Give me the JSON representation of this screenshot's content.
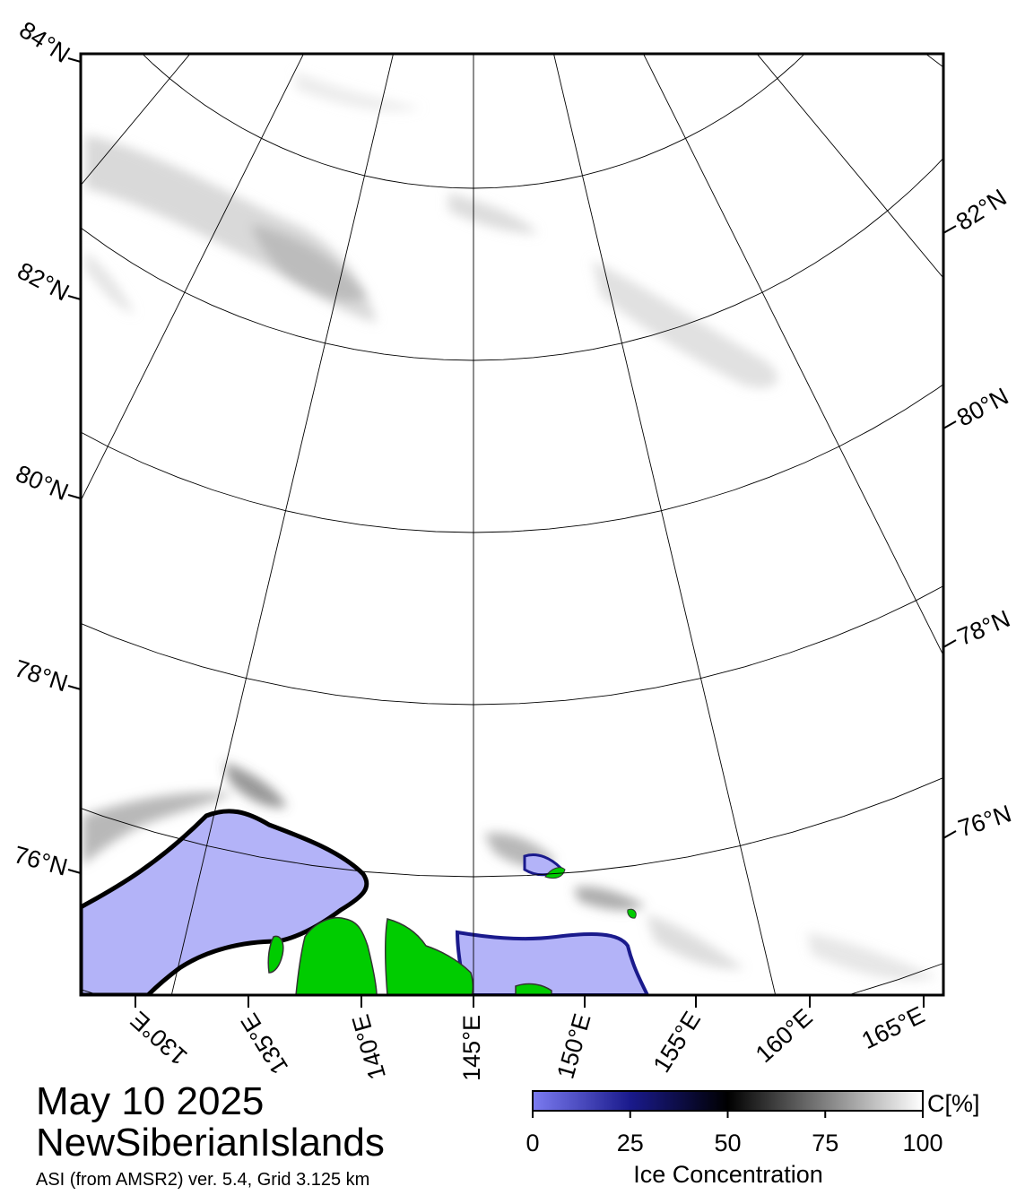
{
  "title": {
    "date": "May 10 2025",
    "region": "NewSiberianIslands",
    "source": "ASI (from AMSR2) ver. 5.4,  Grid 3.125 km"
  },
  "map": {
    "latitude_labels_left": [
      "84°N",
      "82°N",
      "80°N",
      "78°N",
      "76°N"
    ],
    "latitude_labels_right": [
      "82°N",
      "80°N",
      "78°N",
      "76°N"
    ],
    "longitude_labels": [
      "130°E",
      "135°E",
      "140°E",
      "145°E",
      "150°E",
      "155°E",
      "160°E",
      "165°E"
    ],
    "colors": {
      "open_water": "#b3b3f8",
      "land": "#00cc00",
      "ice_max": "#ffffff",
      "coast": "#000000"
    }
  },
  "legend": {
    "title": "Ice Concentration",
    "unit": "C[%]",
    "ticks": [
      "0",
      "25",
      "50",
      "75",
      "100"
    ],
    "gradient": [
      "#7b7bf0",
      "#1a1a8c",
      "#000000",
      "#808080",
      "#ffffff"
    ]
  }
}
